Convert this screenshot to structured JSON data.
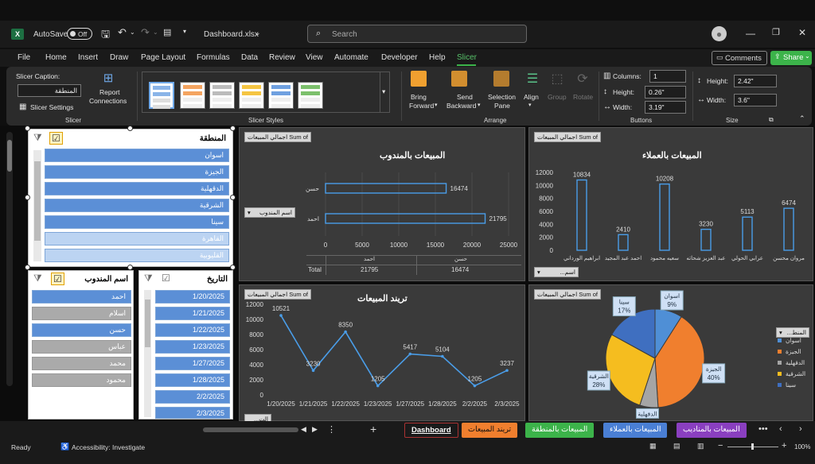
{
  "titlebar": {
    "autosave_label": "AutoSave",
    "autosave_state": "Off",
    "filename": "Dashboard.xlsx",
    "search_placeholder": "Search"
  },
  "menu": [
    "File",
    "Home",
    "Insert",
    "Draw",
    "Page Layout",
    "Formulas",
    "Data",
    "Review",
    "View",
    "Automate",
    "Developer",
    "Help",
    "Slicer"
  ],
  "menu_active": "Slicer",
  "comments_label": "Comments",
  "share_label": "Share",
  "ribbon": {
    "slicer_caption_label": "Slicer Caption:",
    "slicer_caption_value": "المنطقة",
    "slicer_settings": "Slicer Settings",
    "report_connections": [
      "Report",
      "Connections"
    ],
    "group_slicer": "Slicer",
    "group_styles": "Slicer Styles",
    "bring_forward": [
      "Bring",
      "Forward"
    ],
    "send_backward": [
      "Send",
      "Backward"
    ],
    "selection_pane": [
      "Selection",
      "Pane"
    ],
    "align": "Align",
    "group": "Group",
    "rotate": "Rotate",
    "group_arrange": "Arrange",
    "columns_label": "Columns:",
    "columns_value": "1",
    "height_label": "Height:",
    "button_height": "0.26\"",
    "width_label": "Width:",
    "button_width": "3.19\"",
    "group_buttons": "Buttons",
    "size_height_label": "Height:",
    "size_height": "2.42\"",
    "size_width_label": "Width:",
    "size_width": "3.6\"",
    "group_size": "Size"
  },
  "slicers": {
    "region": {
      "title": "المنطقة",
      "items": [
        "اسوان",
        "الجيزة",
        "الدقهلية",
        "الشرقية",
        "سينا",
        "القاهرة",
        "القليوبية"
      ]
    },
    "rep": {
      "title": "اسم المندوب",
      "items": [
        "احمد",
        "اسلام",
        "حسن",
        "عباس",
        "محمد",
        "محمود"
      ]
    },
    "date": {
      "title": "التاريخ",
      "items": [
        "1/20/2025",
        "1/21/2025",
        "1/22/2025",
        "1/23/2025",
        "1/27/2025",
        "1/28/2025",
        "2/2/2025",
        "2/3/2025"
      ]
    }
  },
  "charts": {
    "tag_label": "اجمالي المبيعات Sum of",
    "rep_chart": {
      "title": "المبيعات بالمندوب",
      "filter_label": "اسم المندوب",
      "table_total": "Total",
      "table_headers": [
        "احمد",
        "حسن"
      ],
      "table_values": [
        "21795",
        "16474"
      ]
    },
    "customer_chart": {
      "title": "المبيعات بالعملاء",
      "filter_label": "اسم..."
    },
    "trend_chart": {
      "title": "تريند المبيعات",
      "filter_label": "الت..."
    },
    "pie_chart": {
      "legend_title": "المنط..."
    }
  },
  "chart_data": [
    {
      "type": "bar",
      "title": "المبيعات بالمندوب",
      "categories": [
        "حسن",
        "احمد"
      ],
      "values": [
        16474,
        21795
      ],
      "xlim": [
        0,
        25000
      ],
      "ticks": [
        "0",
        "5000",
        "10000",
        "15000",
        "20000",
        "25000"
      ]
    },
    {
      "type": "bar",
      "title": "المبيعات بالعملاء",
      "categories": [
        "ابراهيم الورداني",
        "احمد عبد المجيد",
        "سعيه محمود",
        "عبد العزيز شحاته",
        "عرابي الحولي",
        "مروان محسن"
      ],
      "values": [
        10834,
        2410,
        10208,
        3230,
        5113,
        6474
      ],
      "ylim": [
        0,
        12000
      ],
      "ticks": [
        "0",
        "2000",
        "4000",
        "6000",
        "8000",
        "10000",
        "12000"
      ]
    },
    {
      "type": "line",
      "title": "تريند المبيعات",
      "x": [
        "1/20/2025",
        "1/21/2025",
        "1/22/2025",
        "1/23/2025",
        "1/27/2025",
        "1/28/2025",
        "2/2/2025",
        "2/3/2025"
      ],
      "values": [
        10521,
        3230,
        8350,
        1205,
        5417,
        5104,
        1205,
        3237
      ],
      "ylim": [
        0,
        12000
      ],
      "ticks": [
        "0",
        "2000",
        "4000",
        "6000",
        "8000",
        "10000",
        "12000"
      ]
    },
    {
      "type": "pie",
      "labels": [
        "اسوان",
        "الجيزة",
        "الدقهلية",
        "الشرقية",
        "سينا"
      ],
      "values": [
        9,
        40,
        6,
        28,
        17
      ],
      "percent_labels": [
        "9%",
        "40%",
        "",
        "28%",
        "17%"
      ],
      "colors": [
        "#4f8fd6",
        "#f07f2e",
        "#a5a5a5",
        "#f5bd1f",
        "#3f6fc0"
      ]
    }
  ],
  "tabs": [
    "Dashboard",
    "تريند المبيعات",
    "المبيعات بالمنطقة",
    "المبيعات بالعملاء",
    "المبيعات بالمناديب"
  ],
  "tab_colors": [
    "#1a1a1a",
    "#f07f2e",
    "#3cb34a",
    "#4a7fd4",
    "#8a3fc0"
  ],
  "status": {
    "ready": "Ready",
    "accessibility": "Accessibility: Investigate",
    "zoom": "100%"
  },
  "colors": {
    "accent_green": "#3cb34a",
    "chart_blue": "#4a9de8",
    "slicer_blue": "#5b8fd6"
  }
}
